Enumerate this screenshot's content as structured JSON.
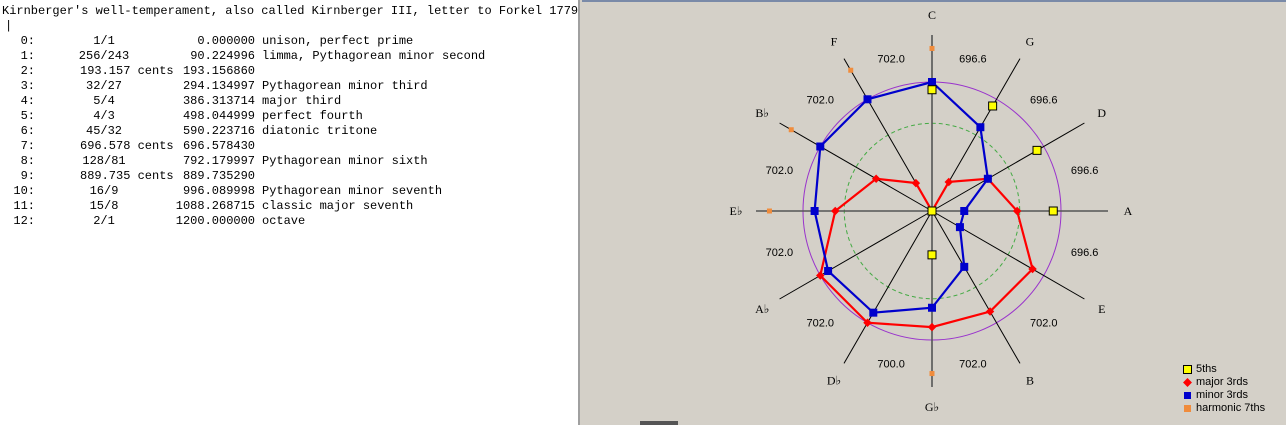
{
  "text_panel": {
    "title": "Kirnberger's well-temperament, also called Kirnberger III, letter to Forkel 1779",
    "cursor": "|",
    "rows": [
      {
        "index": "0:",
        "ratio": "1/1",
        "cents": "0.000000",
        "name": "unison, perfect prime"
      },
      {
        "index": "1:",
        "ratio": "256/243",
        "cents": "90.224996",
        "name": "limma, Pythagorean minor second"
      },
      {
        "index": "2:",
        "ratio": "193.157 cents",
        "cents": "193.156860",
        "name": ""
      },
      {
        "index": "3:",
        "ratio": "32/27",
        "cents": "294.134997",
        "name": "Pythagorean minor third"
      },
      {
        "index": "4:",
        "ratio": "5/4",
        "cents": "386.313714",
        "name": "major third"
      },
      {
        "index": "5:",
        "ratio": "4/3",
        "cents": "498.044999",
        "name": "perfect fourth"
      },
      {
        "index": "6:",
        "ratio": "45/32",
        "cents": "590.223716",
        "name": "diatonic tritone"
      },
      {
        "index": "7:",
        "ratio": "696.578 cents",
        "cents": "696.578430",
        "name": ""
      },
      {
        "index": "8:",
        "ratio": "128/81",
        "cents": "792.179997",
        "name": "Pythagorean minor sixth"
      },
      {
        "index": "9:",
        "ratio": "889.735 cents",
        "cents": "889.735290",
        "name": ""
      },
      {
        "index": "10:",
        "ratio": "16/9",
        "cents": "996.089998",
        "name": "Pythagorean minor seventh"
      },
      {
        "index": "11:",
        "ratio": "15/8",
        "cents": "1088.268715",
        "name": "classic major seventh"
      },
      {
        "index": "12:",
        "ratio": "2/1",
        "cents": "1200.000000",
        "name": "octave"
      }
    ]
  },
  "chart_data": {
    "type": "radar",
    "axes": [
      "C",
      "G",
      "D",
      "A",
      "E",
      "B",
      "G♭",
      "D♭",
      "A♭",
      "E♭",
      "B♭",
      "F"
    ],
    "fifth_sizes": [
      "696.6",
      "696.6",
      "696.6",
      "696.6",
      "702.0",
      "702.0",
      "700.0",
      "702.0",
      "702.0",
      "702.0",
      "702.0",
      "702.0"
    ],
    "reference_circles": [
      {
        "radius": 1.0,
        "color": "#9933cc",
        "style": "solid"
      },
      {
        "radius": 0.68,
        "color": "#44aa44",
        "style": "dashed"
      }
    ],
    "series": [
      {
        "name": "5ths",
        "color": "#ffff00",
        "marker": "open-square",
        "connected": false,
        "values": [
          0.94,
          0.94,
          0.94,
          0.94,
          0,
          0,
          0.34,
          0,
          0,
          0,
          0,
          0
        ]
      },
      {
        "name": "major 3rds",
        "color": "#ff0000",
        "marker": "diamond",
        "connected": true,
        "values": [
          0,
          0.26,
          0.5,
          0.66,
          0.9,
          0.9,
          0.9,
          1.0,
          1.0,
          0.75,
          0.5,
          0.25
        ]
      },
      {
        "name": "minor 3rds",
        "color": "#0000cc",
        "marker": "square",
        "connected": true,
        "values": [
          1.0,
          0.75,
          0.5,
          0.25,
          0.25,
          0.5,
          0.75,
          0.91,
          0.93,
          0.91,
          1.0,
          1.0
        ]
      },
      {
        "name": "harmonic 7ths",
        "color": "#f08c3c",
        "marker": "small-square",
        "connected": false,
        "values": [
          1.26,
          null,
          null,
          null,
          null,
          null,
          1.26,
          null,
          null,
          1.26,
          1.26,
          1.26
        ]
      }
    ],
    "legend_position": "bottom-right"
  }
}
